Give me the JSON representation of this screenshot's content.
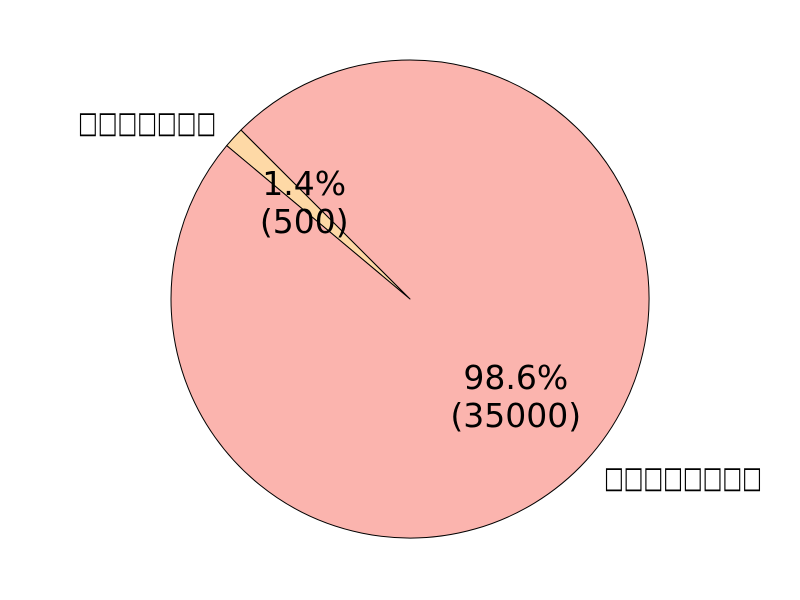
{
  "chart_data": {
    "type": "pie",
    "labels": [
      "□□□□□□□",
      "□□□□□□□□"
    ],
    "values": [
      500,
      35000
    ],
    "percent_labels": [
      "1.4%",
      "98.6%"
    ],
    "value_labels": [
      "(500)",
      "(35000)"
    ],
    "colors": [
      "#fed9a6",
      "#fbb4ae"
    ],
    "edge_color": "#000000"
  }
}
